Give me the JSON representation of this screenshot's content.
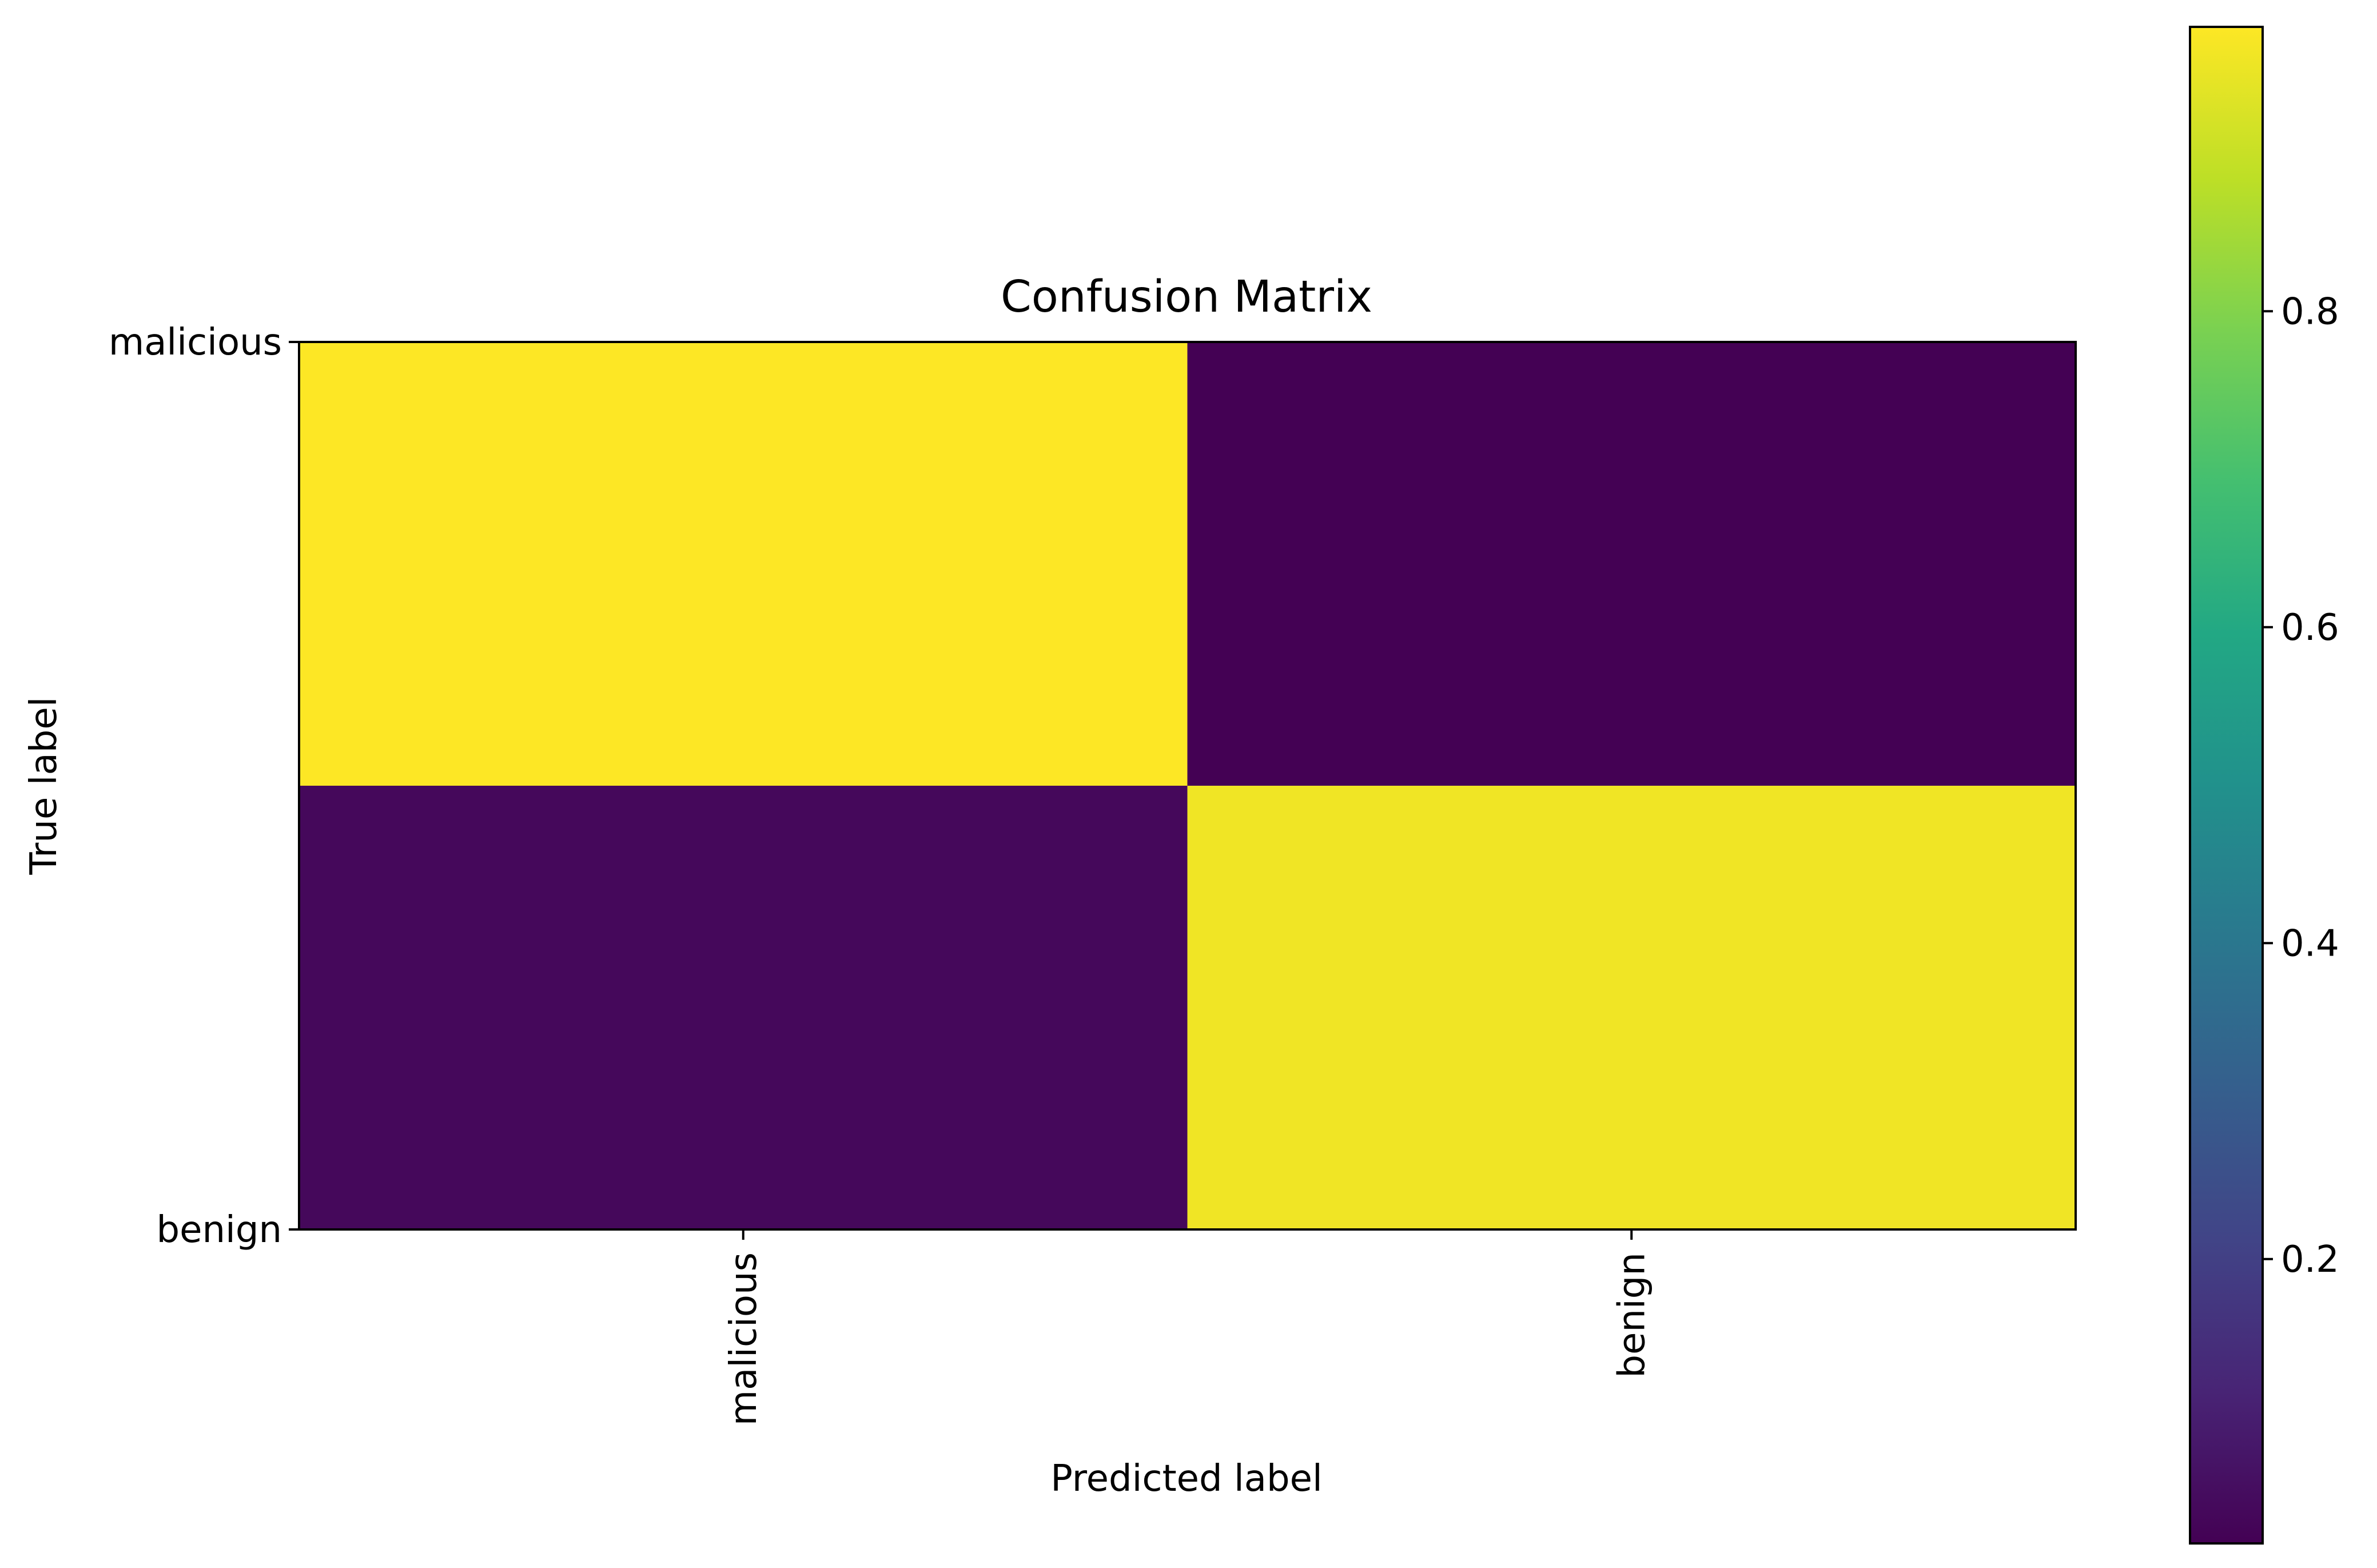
{
  "chart_data": {
    "type": "heatmap",
    "title": "Confusion Matrix",
    "xlabel": "Predicted label",
    "ylabel": "True label",
    "x_categories": [
      "malicious",
      "benign"
    ],
    "y_categories": [
      "malicious",
      "benign"
    ],
    "values": [
      [
        0.98,
        0.02
      ],
      [
        0.04,
        0.96
      ]
    ],
    "colormap": "viridis",
    "colorbar": {
      "range": [
        0.02,
        0.98
      ],
      "ticks": [
        0.2,
        0.4,
        0.6,
        0.8
      ],
      "tick_labels": [
        "0.2",
        "0.4",
        "0.6",
        "0.8"
      ]
    },
    "grid": false
  }
}
